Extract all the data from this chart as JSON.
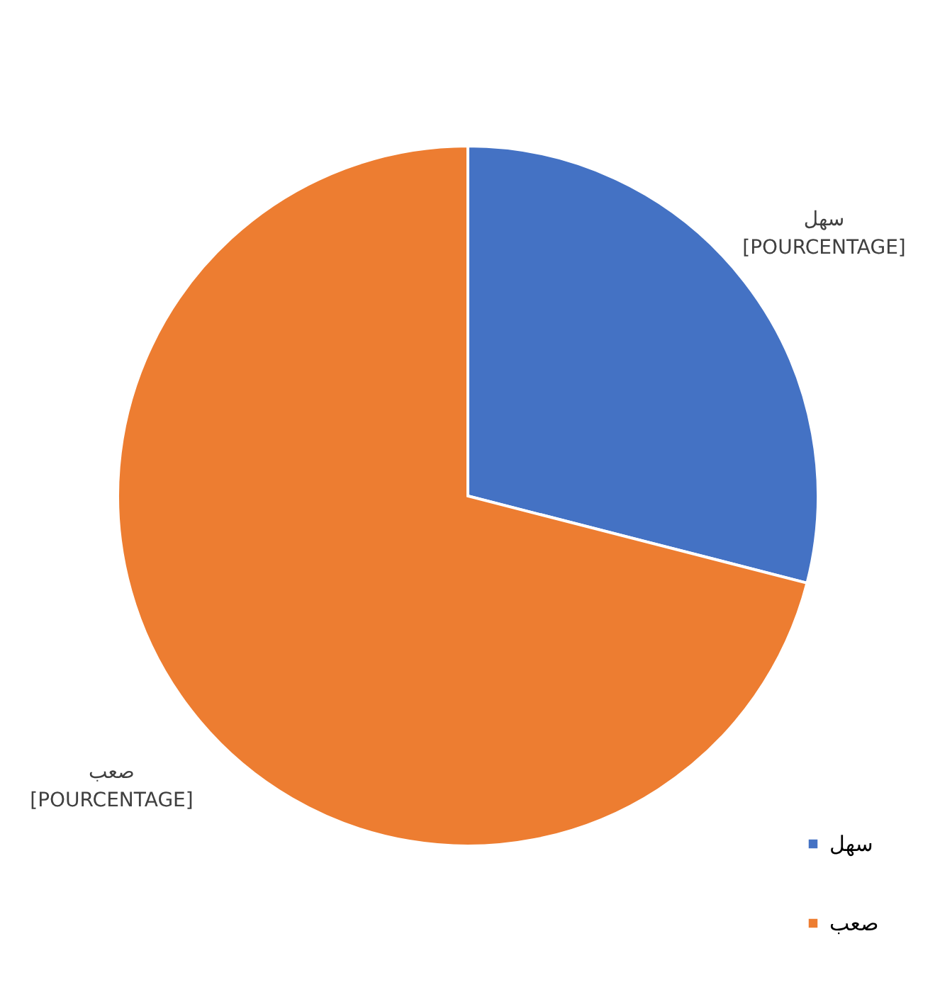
{
  "chart_data": {
    "type": "pie",
    "categories": [
      "سهل",
      "صعب"
    ],
    "values": [
      29,
      71
    ],
    "colors": [
      "#4472c4",
      "#ed7d31"
    ],
    "value_labels": [
      "[POURCENTAGE]",
      "[POURCENTAGE]"
    ],
    "legend": "bottom right"
  }
}
